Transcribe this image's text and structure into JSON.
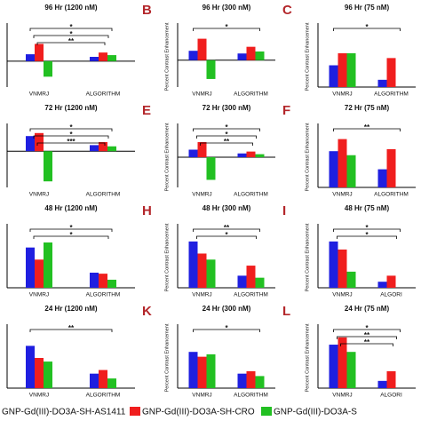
{
  "chart_data": [
    {
      "type": "bar",
      "title": "96 Hr (1200 nM)",
      "categories": [
        "VNMRJ",
        "ALGORITHM"
      ],
      "ylim": [
        -30,
        40
      ],
      "series": [
        {
          "color": "#1f1fe0",
          "values": [
            8,
            5
          ]
        },
        {
          "color": "#f01e1e",
          "values": [
            20,
            10
          ]
        },
        {
          "color": "#22c022",
          "values": [
            -18,
            7
          ]
        }
      ],
      "annotations": [
        "*",
        "*",
        "**"
      ]
    },
    {
      "type": "bar",
      "label": "B",
      "title": "96 Hr (300 nM)",
      "ylabel": "Percent Contrast Enhancement",
      "categories": [
        "VNMRJ",
        "ALGORITHM"
      ],
      "ylim": [
        -40,
        50
      ],
      "series": [
        {
          "color": "#1f1fe0",
          "values": [
            14,
            10
          ]
        },
        {
          "color": "#f01e1e",
          "values": [
            32,
            20
          ]
        },
        {
          "color": "#22c022",
          "values": [
            -28,
            13
          ]
        }
      ],
      "annotations": [
        "*"
      ]
    },
    {
      "type": "bar",
      "label": "C",
      "title": "96 Hr (75 nM)",
      "ylabel": "Percent Contrast Enhancement",
      "categories": [
        "VNMRJ",
        "ALGORITHM"
      ],
      "ylim": [
        0,
        25
      ],
      "series": [
        {
          "color": "#1f1fe0",
          "values": [
            9,
            3
          ]
        },
        {
          "color": "#f01e1e",
          "values": [
            14,
            12
          ]
        },
        {
          "color": "#22c022",
          "values": [
            14,
            null
          ]
        }
      ],
      "annotations": [
        "*"
      ]
    },
    {
      "type": "bar",
      "title": "72 Hr (1200 nM)",
      "categories": [
        "VNMRJ",
        "ALGORITHM"
      ],
      "ylim": [
        -60,
        40
      ],
      "series": [
        {
          "color": "#1f1fe0",
          "values": [
            25,
            10
          ]
        },
        {
          "color": "#f01e1e",
          "values": [
            30,
            15
          ]
        },
        {
          "color": "#22c022",
          "values": [
            -50,
            8
          ]
        }
      ],
      "annotations": [
        "*",
        "*",
        "***"
      ]
    },
    {
      "type": "bar",
      "label": "E",
      "title": "72 Hr (300 nM)",
      "ylabel": "Percent Contrast Enhancement",
      "categories": [
        "VNMRJ",
        "ALGORITHM"
      ],
      "ylim": [
        -80,
        80
      ],
      "series": [
        {
          "color": "#1f1fe0",
          "values": [
            20,
            10
          ]
        },
        {
          "color": "#f01e1e",
          "values": [
            40,
            15
          ]
        },
        {
          "color": "#22c022",
          "values": [
            -60,
            8
          ]
        }
      ],
      "annotations": [
        "*",
        "*",
        "**"
      ]
    },
    {
      "type": "bar",
      "label": "F",
      "title": "72 Hr (75 nM)",
      "ylabel": "Percent Contrast Enhancement",
      "categories": [
        "VNMRJ",
        "ALGORITHM"
      ],
      "ylim": [
        0,
        30
      ],
      "series": [
        {
          "color": "#1f1fe0",
          "values": [
            18,
            9
          ]
        },
        {
          "color": "#f01e1e",
          "values": [
            24,
            19
          ]
        },
        {
          "color": "#22c022",
          "values": [
            16,
            null
          ]
        }
      ],
      "annotations": [
        "**"
      ]
    },
    {
      "type": "bar",
      "title": "48 Hr (1200 nM)",
      "categories": [
        "VNMRJ",
        "ALGORITHM"
      ],
      "ylim": [
        0,
        60
      ],
      "series": [
        {
          "color": "#1f1fe0",
          "values": [
            40,
            15
          ]
        },
        {
          "color": "#f01e1e",
          "values": [
            28,
            14
          ]
        },
        {
          "color": "#22c022",
          "values": [
            45,
            8
          ]
        }
      ],
      "annotations": [
        "*",
        "*"
      ]
    },
    {
      "type": "bar",
      "label": "H",
      "title": "48 Hr (300 nM)",
      "ylabel": "Percent Contrast Enhancement",
      "categories": [
        "VNMRJ",
        "ALGORITHM"
      ],
      "ylim": [
        0,
        30
      ],
      "series": [
        {
          "color": "#1f1fe0",
          "values": [
            23,
            6
          ]
        },
        {
          "color": "#f01e1e",
          "values": [
            17,
            11
          ]
        },
        {
          "color": "#22c022",
          "values": [
            14,
            5
          ]
        }
      ],
      "annotations": [
        "**",
        "*"
      ]
    },
    {
      "type": "bar",
      "label": "I",
      "title": "48 Hr (75 nM)",
      "ylabel": "Percent Contrast Enhancement",
      "categories": [
        "VNMRJ",
        "ALGORI"
      ],
      "ylim": [
        0,
        30
      ],
      "series": [
        {
          "color": "#1f1fe0",
          "values": [
            23,
            3
          ]
        },
        {
          "color": "#f01e1e",
          "values": [
            19,
            6
          ]
        },
        {
          "color": "#22c022",
          "values": [
            8,
            null
          ]
        }
      ],
      "annotations": [
        "*",
        "*"
      ]
    },
    {
      "type": "bar",
      "title": "24 Hr (1200 nM)",
      "categories": [
        "VNMRJ",
        "ALGORITHM"
      ],
      "ylim": [
        0,
        50
      ],
      "series": [
        {
          "color": "#1f1fe0",
          "values": [
            35,
            12
          ]
        },
        {
          "color": "#f01e1e",
          "values": [
            25,
            15
          ]
        },
        {
          "color": "#22c022",
          "values": [
            22,
            8
          ]
        }
      ],
      "annotations": [
        "**"
      ]
    },
    {
      "type": "bar",
      "label": "K",
      "title": "24 Hr (300 nM)",
      "ylabel": "Percent Contrast Enhancement",
      "categories": [
        "VNMRJ",
        "ALGORITHM"
      ],
      "ylim": [
        0,
        25
      ],
      "series": [
        {
          "color": "#1f1fe0",
          "values": [
            15,
            6
          ]
        },
        {
          "color": "#f01e1e",
          "values": [
            13,
            7
          ]
        },
        {
          "color": "#22c022",
          "values": [
            14,
            5
          ]
        }
      ],
      "annotations": [
        "*"
      ]
    },
    {
      "type": "bar",
      "label": "L",
      "title": "24 Hr (75 nM)",
      "ylabel": "Percent Contrast Enhancement",
      "categories": [
        "VNMRJ",
        "ALGORI"
      ],
      "ylim": [
        0,
        25
      ],
      "series": [
        {
          "color": "#1f1fe0",
          "values": [
            18,
            3
          ]
        },
        {
          "color": "#f01e1e",
          "values": [
            21,
            7
          ]
        },
        {
          "color": "#22c022",
          "values": [
            15,
            null
          ]
        }
      ],
      "annotations": [
        "*",
        "**",
        "**"
      ]
    }
  ],
  "legend": [
    {
      "name": "GNP-Gd(III)-DO3A-SH-AS1411",
      "color": "#1f1fe0"
    },
    {
      "name": "GNP-Gd(III)-DO3A-SH-CRO",
      "color": "#f01e1e"
    },
    {
      "name": "GNP-Gd(III)-DO3A-S",
      "color": "#22c022"
    }
  ]
}
